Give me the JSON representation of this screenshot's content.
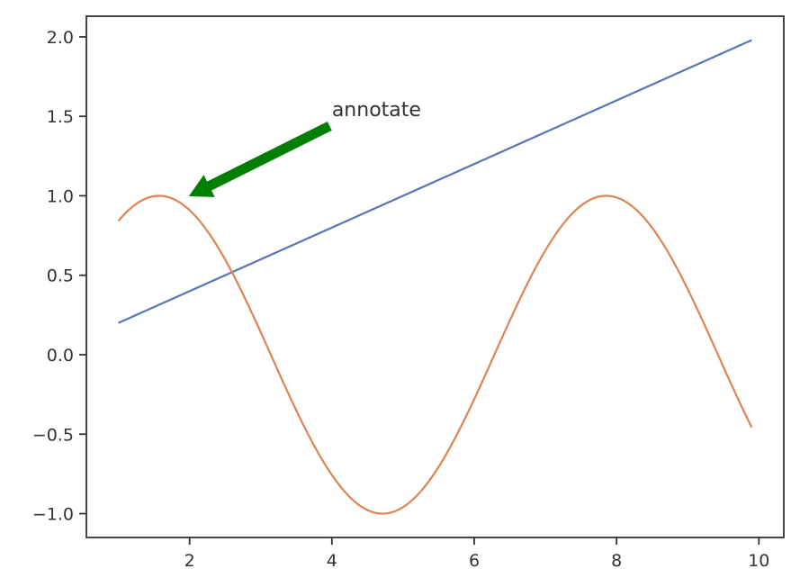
{
  "chart_data": {
    "type": "line",
    "title": "",
    "xlabel": "",
    "ylabel": "",
    "xlim": [
      0.55,
      10.35
    ],
    "ylim": [
      -1.15,
      2.13
    ],
    "grid": false,
    "x_ticks": [
      2,
      4,
      6,
      8,
      10
    ],
    "y_ticks": [
      2.0,
      1.5,
      1.0,
      0.5,
      0.0,
      -0.5,
      -1.0
    ],
    "x_tick_labels": [
      "2",
      "4",
      "6",
      "8",
      "10"
    ],
    "y_tick_labels": [
      "2.0",
      "1.5",
      "1.0",
      "0.5",
      "0.0",
      "−0.5",
      "−1.0"
    ],
    "series": [
      {
        "color": "#5875b4",
        "function": "0.2*x",
        "x_range": [
          1,
          9.9
        ],
        "x": [
          1,
          9.9
        ],
        "y": [
          0.2,
          1.98
        ]
      },
      {
        "color": "#dd8452",
        "function": "sin(x)",
        "x_range": [
          1,
          9.9
        ],
        "x": [
          1,
          1.5708,
          2,
          3,
          4,
          4.7124,
          5,
          6,
          7,
          7.854,
          8,
          9,
          9.9
        ],
        "y": [
          0.841,
          1.0,
          0.909,
          0.141,
          -0.757,
          -1.0,
          -0.959,
          -0.279,
          0.657,
          1.0,
          0.989,
          0.412,
          -0.458
        ]
      }
    ],
    "annotations": [
      {
        "text": "annotate",
        "text_xy": [
          4,
          1.5
        ],
        "arrow_tip_xy": [
          2,
          1.0
        ],
        "arrow_color": "#008000"
      }
    ]
  }
}
